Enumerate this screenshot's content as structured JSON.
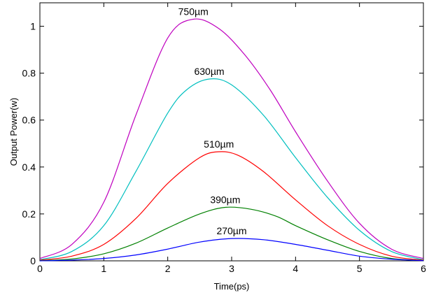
{
  "chart_data": {
    "type": "line",
    "title": "",
    "xlabel": "Time(ps)",
    "ylabel": "Output Power(w)",
    "xlim": [
      0,
      6
    ],
    "ylim": [
      0,
      1.1
    ],
    "xticks": [
      0,
      1,
      2,
      3,
      4,
      5,
      6
    ],
    "yticks": [
      0,
      0.2,
      0.4,
      0.6,
      0.8,
      1
    ],
    "grid": false,
    "legend": "none",
    "series": [
      {
        "name": "750µm",
        "color": "#bf00bf",
        "x": [
          0,
          0.5,
          1,
          1.5,
          2,
          2.4,
          2.8,
          3.2,
          3.6,
          4,
          4.5,
          5,
          5.5,
          6
        ],
        "y": [
          0.01,
          0.07,
          0.25,
          0.62,
          0.95,
          1.03,
          0.99,
          0.88,
          0.73,
          0.55,
          0.34,
          0.16,
          0.05,
          0.01
        ]
      },
      {
        "name": "630µm",
        "color": "#00bfbf",
        "x": [
          0,
          0.5,
          1,
          1.5,
          2,
          2.3,
          2.65,
          3,
          3.5,
          4,
          4.5,
          5,
          5.5,
          6
        ],
        "y": [
          0.005,
          0.04,
          0.15,
          0.38,
          0.63,
          0.73,
          0.775,
          0.75,
          0.62,
          0.44,
          0.27,
          0.13,
          0.04,
          0.005
        ]
      },
      {
        "name": "510µm",
        "color": "#ff0000",
        "x": [
          0,
          0.5,
          1,
          1.5,
          2,
          2.5,
          2.8,
          3.1,
          3.5,
          4,
          4.5,
          5,
          5.5,
          6
        ],
        "y": [
          0.003,
          0.02,
          0.07,
          0.18,
          0.33,
          0.44,
          0.465,
          0.45,
          0.38,
          0.26,
          0.15,
          0.07,
          0.02,
          0.003
        ]
      },
      {
        "name": "390µm",
        "color": "#008000",
        "x": [
          0,
          0.5,
          1,
          1.5,
          2,
          2.5,
          2.9,
          3.3,
          3.7,
          4,
          4.5,
          5,
          5.5,
          6
        ],
        "y": [
          0.001,
          0.008,
          0.03,
          0.075,
          0.14,
          0.2,
          0.228,
          0.22,
          0.19,
          0.15,
          0.09,
          0.04,
          0.01,
          0.001
        ]
      },
      {
        "name": "270µm",
        "color": "#0000ff",
        "x": [
          0,
          0.5,
          1,
          1.5,
          2,
          2.5,
          3,
          3.5,
          4,
          4.5,
          5,
          5.5,
          6
        ],
        "y": [
          0,
          0.003,
          0.01,
          0.025,
          0.05,
          0.08,
          0.095,
          0.09,
          0.07,
          0.045,
          0.02,
          0.007,
          0.001
        ]
      }
    ]
  }
}
